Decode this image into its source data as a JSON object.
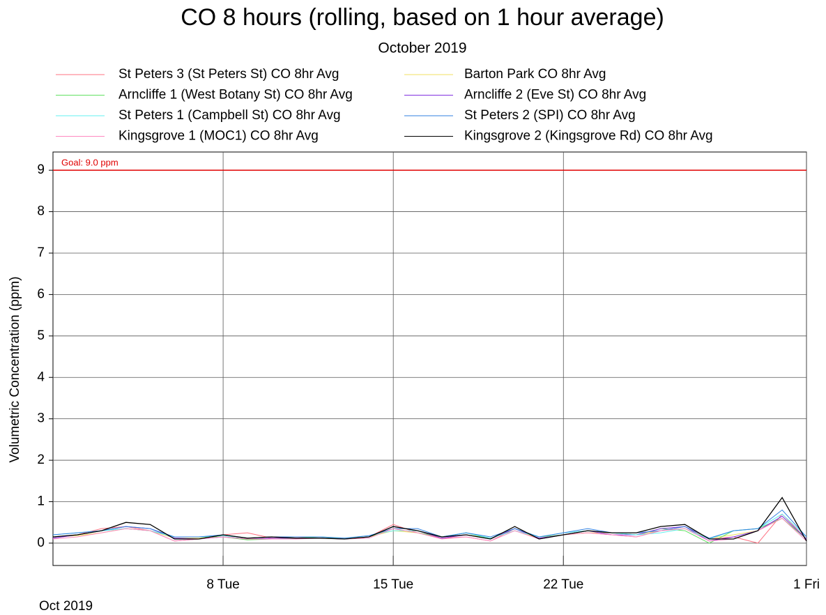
{
  "chart_data": {
    "type": "line",
    "title": "CO 8 hours (rolling, based on 1 hour average)",
    "subtitle": "October 2019",
    "y_label": "Volumetric Concentration (ppm)",
    "x_sublabel": "Oct 2019",
    "x": [
      "2019-10-01",
      "2019-10-02",
      "2019-10-03",
      "2019-10-04",
      "2019-10-05",
      "2019-10-06",
      "2019-10-07",
      "2019-10-08",
      "2019-10-09",
      "2019-10-10",
      "2019-10-11",
      "2019-10-12",
      "2019-10-13",
      "2019-10-14",
      "2019-10-15",
      "2019-10-16",
      "2019-10-17",
      "2019-10-18",
      "2019-10-19",
      "2019-10-20",
      "2019-10-21",
      "2019-10-22",
      "2019-10-23",
      "2019-10-24",
      "2019-10-25",
      "2019-10-26",
      "2019-10-27",
      "2019-10-28",
      "2019-10-29",
      "2019-10-30",
      "2019-10-31",
      "2019-11-01"
    ],
    "xlim": [
      "2019-10-01",
      "2019-11-01"
    ],
    "xticks": [
      {
        "value": "2019-10-08",
        "label": "8 Tue"
      },
      {
        "value": "2019-10-15",
        "label": "15 Tue"
      },
      {
        "value": "2019-10-22",
        "label": "22 Tue"
      },
      {
        "value": "2019-11-01",
        "label": "1 Fri"
      }
    ],
    "ylim": [
      -0.54,
      9.44
    ],
    "yticks": [
      0,
      1,
      2,
      3,
      4,
      5,
      6,
      7,
      8,
      9
    ],
    "grid": true,
    "goal": {
      "value": 9,
      "label": "Goal: 9.0 ppm",
      "color": "#e00000"
    },
    "series": [
      {
        "name": "St Peters 3 (St Peters St) CO 8hr Avg",
        "color": "#ff7080",
        "values": [
          0.12,
          0.2,
          0.35,
          0.4,
          0.3,
          0.05,
          0.1,
          0.2,
          0.25,
          0.12,
          0.15,
          0.12,
          0.1,
          0.15,
          0.45,
          0.25,
          0.12,
          0.15,
          0.05,
          0.35,
          0.1,
          0.2,
          0.25,
          0.2,
          0.15,
          0.3,
          0.4,
          0.1,
          0.15,
          0.0,
          0.7,
          0.1
        ]
      },
      {
        "name": "Barton Park CO 8hr Avg",
        "color": "#f0e060",
        "values": [
          0.15,
          0.18,
          0.25,
          0.35,
          0.3,
          0.12,
          0.12,
          0.15,
          0.1,
          0.12,
          0.15,
          0.15,
          0.12,
          0.15,
          0.3,
          0.25,
          0.15,
          0.2,
          0.12,
          0.3,
          0.12,
          0.2,
          0.25,
          0.25,
          0.2,
          0.3,
          0.35,
          0.12,
          0.2,
          0.3,
          0.6,
          0.1
        ]
      },
      {
        "name": "Arncliffe 1 (West Botany St) CO 8hr Avg",
        "color": "#60e060",
        "values": [
          0.15,
          0.2,
          0.3,
          0.35,
          0.3,
          0.15,
          0.15,
          0.15,
          0.08,
          0.1,
          0.12,
          0.15,
          0.1,
          0.15,
          0.35,
          0.25,
          0.15,
          0.25,
          0.1,
          0.35,
          0.15,
          0.2,
          0.3,
          0.25,
          0.2,
          0.35,
          0.3,
          0.0,
          0.3,
          0.35,
          0.6,
          0.1
        ]
      },
      {
        "name": "Arncliffe 2 (Eve St) CO 8hr Avg",
        "color": "#8030e0",
        "values": [
          0.12,
          0.2,
          0.3,
          0.4,
          0.35,
          0.12,
          0.1,
          0.15,
          0.1,
          0.12,
          0.12,
          0.12,
          0.1,
          0.15,
          0.4,
          0.3,
          0.12,
          0.2,
          0.1,
          0.35,
          0.12,
          0.2,
          0.3,
          0.2,
          0.2,
          0.35,
          0.4,
          0.05,
          0.15,
          0.3,
          0.65,
          0.1
        ]
      },
      {
        "name": "St Peters 1 (Campbell St) CO 8hr Avg",
        "color": "#60f0f0",
        "values": [
          0.2,
          0.25,
          0.3,
          0.35,
          0.3,
          0.15,
          0.15,
          0.18,
          0.12,
          0.15,
          0.15,
          0.15,
          0.12,
          0.18,
          0.3,
          0.3,
          0.15,
          0.25,
          0.12,
          0.3,
          0.15,
          0.25,
          0.3,
          0.25,
          0.2,
          0.25,
          0.35,
          0.1,
          0.3,
          0.35,
          0.7,
          0.15
        ]
      },
      {
        "name": "St Peters 2 (SPI) CO 8hr Avg",
        "color": "#3080e0",
        "values": [
          0.2,
          0.25,
          0.3,
          0.4,
          0.35,
          0.15,
          0.15,
          0.2,
          0.12,
          0.15,
          0.15,
          0.15,
          0.12,
          0.18,
          0.35,
          0.35,
          0.15,
          0.25,
          0.15,
          0.35,
          0.15,
          0.25,
          0.35,
          0.25,
          0.25,
          0.3,
          0.4,
          0.12,
          0.3,
          0.35,
          0.8,
          0.15
        ]
      },
      {
        "name": "Kingsgrove 1 (MOC1) CO 8hr Avg",
        "color": "#ff88c0",
        "values": [
          0.1,
          0.15,
          0.25,
          0.35,
          0.3,
          0.05,
          0.1,
          0.15,
          0.1,
          0.1,
          0.1,
          0.12,
          0.1,
          0.12,
          0.35,
          0.25,
          0.1,
          0.15,
          0.05,
          0.3,
          0.1,
          0.2,
          0.25,
          0.2,
          0.15,
          0.3,
          0.35,
          0.05,
          0.1,
          0.3,
          0.6,
          0.05
        ]
      },
      {
        "name": "Kingsgrove 2 (Kingsgrove Rd) CO 8hr Avg",
        "color": "#000000",
        "values": [
          0.15,
          0.2,
          0.3,
          0.5,
          0.45,
          0.1,
          0.1,
          0.2,
          0.12,
          0.15,
          0.12,
          0.12,
          0.1,
          0.15,
          0.4,
          0.3,
          0.15,
          0.2,
          0.1,
          0.4,
          0.1,
          0.2,
          0.3,
          0.25,
          0.25,
          0.4,
          0.45,
          0.1,
          0.1,
          0.3,
          1.1,
          0.05
        ]
      }
    ]
  }
}
